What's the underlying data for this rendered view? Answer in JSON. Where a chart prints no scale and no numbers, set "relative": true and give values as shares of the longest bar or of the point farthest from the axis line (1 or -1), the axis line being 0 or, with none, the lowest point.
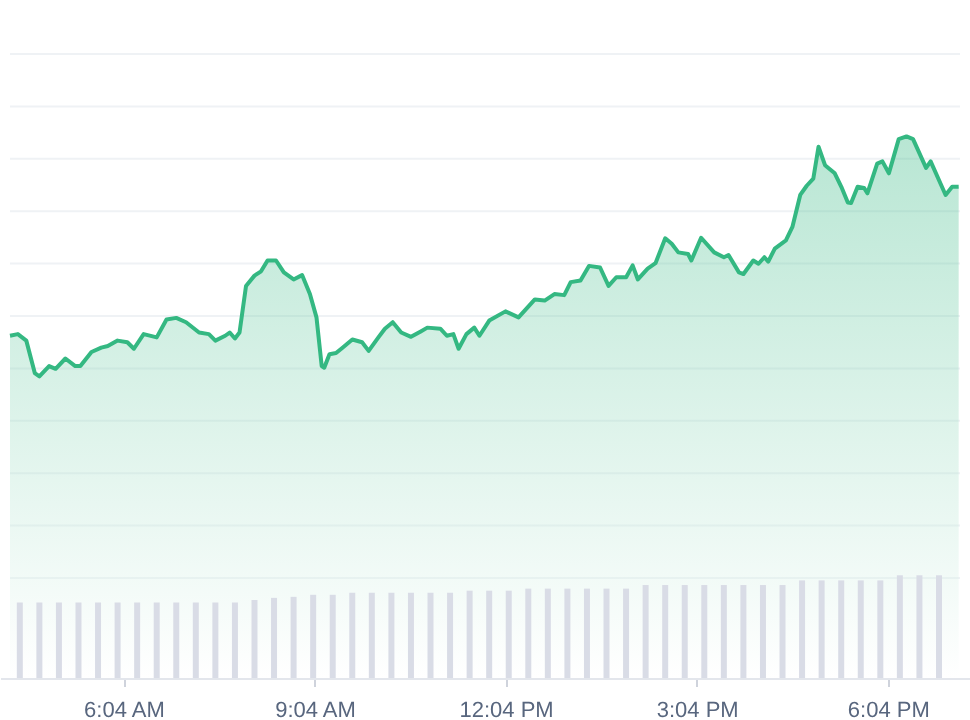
{
  "chart_data": {
    "type": "area",
    "relative": true,
    "grid": "y",
    "tick_labels": "x",
    "marker": "none",
    "line_style": "solid",
    "x": [
      4.287,
      4.41,
      4.543,
      4.676,
      4.748,
      4.901,
      5.003,
      5.157,
      5.311,
      5.392,
      5.566,
      5.72,
      5.822,
      5.976,
      6.129,
      6.232,
      6.385,
      6.59,
      6.744,
      6.897,
      7.051,
      7.255,
      7.409,
      7.511,
      7.665,
      7.736,
      7.818,
      7.89,
      7.992,
      8.125,
      8.228,
      8.33,
      8.463,
      8.586,
      8.739,
      8.872,
      8.995,
      9.098,
      9.18,
      9.22,
      9.302,
      9.405,
      9.507,
      9.661,
      9.814,
      9.917,
      10.07,
      10.172,
      10.295,
      10.428,
      10.582,
      10.735,
      10.838,
      11.042,
      11.145,
      11.247,
      11.329,
      11.452,
      11.575,
      11.656,
      11.81,
      12.065,
      12.27,
      12.526,
      12.68,
      12.833,
      12.987,
      13.089,
      13.243,
      13.376,
      13.55,
      13.683,
      13.805,
      13.959,
      14.061,
      14.143,
      14.297,
      14.42,
      14.573,
      14.675,
      14.778,
      14.931,
      14.983,
      15.136,
      15.341,
      15.494,
      15.566,
      15.73,
      15.801,
      15.955,
      16.037,
      16.129,
      16.19,
      16.293,
      16.467,
      16.569,
      16.692,
      16.794,
      16.897,
      16.979,
      17.081,
      17.234,
      17.337,
      17.439,
      17.49,
      17.593,
      17.695,
      17.746,
      17.9,
      17.982,
      18.084,
      18.238,
      18.36,
      18.463,
      18.667,
      18.739,
      18.974,
      19.077,
      19.179
    ],
    "xlim": [
      4.287,
      19.2
    ],
    "xticks": [
      {
        "value": 6.067,
        "label": "6:04 AM"
      },
      {
        "value": 9.067,
        "label": "9:04 AM"
      },
      {
        "value": 12.067,
        "label": "12:04 PM"
      },
      {
        "value": 15.067,
        "label": "3:04 PM"
      },
      {
        "value": 18.067,
        "label": "6:04 PM"
      }
    ],
    "series": [
      {
        "color": "#34b882",
        "values": [
          0.632,
          0.635,
          0.623,
          0.563,
          0.557,
          0.576,
          0.571,
          0.59,
          0.576,
          0.576,
          0.602,
          0.61,
          0.613,
          0.623,
          0.62,
          0.608,
          0.635,
          0.629,
          0.662,
          0.665,
          0.657,
          0.638,
          0.635,
          0.623,
          0.632,
          0.638,
          0.627,
          0.638,
          0.724,
          0.743,
          0.751,
          0.771,
          0.771,
          0.749,
          0.736,
          0.744,
          0.709,
          0.666,
          0.576,
          0.573,
          0.598,
          0.6,
          0.61,
          0.625,
          0.62,
          0.604,
          0.629,
          0.645,
          0.657,
          0.638,
          0.63,
          0.64,
          0.647,
          0.645,
          0.632,
          0.635,
          0.608,
          0.635,
          0.647,
          0.632,
          0.66,
          0.677,
          0.666,
          0.699,
          0.697,
          0.709,
          0.707,
          0.731,
          0.734,
          0.761,
          0.758,
          0.724,
          0.74,
          0.74,
          0.762,
          0.736,
          0.756,
          0.766,
          0.812,
          0.802,
          0.786,
          0.783,
          0.771,
          0.813,
          0.786,
          0.777,
          0.781,
          0.749,
          0.746,
          0.771,
          0.765,
          0.777,
          0.769,
          0.793,
          0.808,
          0.833,
          0.892,
          0.909,
          0.922,
          0.981,
          0.947,
          0.932,
          0.907,
          0.878,
          0.877,
          0.907,
          0.905,
          0.895,
          0.95,
          0.954,
          0.932,
          0.995,
          1,
          0.995,
          0.942,
          0.954,
          0.892,
          0.907,
          0.907
        ]
      },
      {
        "type": "bar",
        "axis": "y2",
        "color": "#d9dce6",
        "x": [
          4.441,
          4.748,
          5.055,
          5.362,
          5.669,
          5.976,
          6.283,
          6.59,
          6.897,
          7.204,
          7.511,
          7.818,
          8.125,
          8.432,
          8.739,
          9.046,
          9.353,
          9.66,
          9.967,
          10.274,
          10.581,
          10.888,
          11.195,
          11.502,
          11.809,
          12.116,
          12.423,
          12.73,
          13.037,
          13.344,
          13.651,
          13.958,
          14.265,
          14.572,
          14.879,
          15.186,
          15.493,
          15.8,
          16.107,
          16.414,
          16.721,
          17.028,
          17.335,
          17.642,
          17.949,
          18.256,
          18.563,
          18.87
        ],
        "values": [
          0.735,
          0.735,
          0.735,
          0.735,
          0.735,
          0.735,
          0.735,
          0.735,
          0.735,
          0.735,
          0.735,
          0.735,
          0.76,
          0.78,
          0.79,
          0.81,
          0.81,
          0.83,
          0.83,
          0.83,
          0.83,
          0.83,
          0.83,
          0.85,
          0.85,
          0.85,
          0.87,
          0.87,
          0.87,
          0.87,
          0.87,
          0.87,
          0.905,
          0.905,
          0.905,
          0.905,
          0.905,
          0.905,
          0.905,
          0.905,
          0.95,
          0.95,
          0.95,
          0.95,
          0.95,
          1,
          1,
          1
        ]
      }
    ]
  }
}
